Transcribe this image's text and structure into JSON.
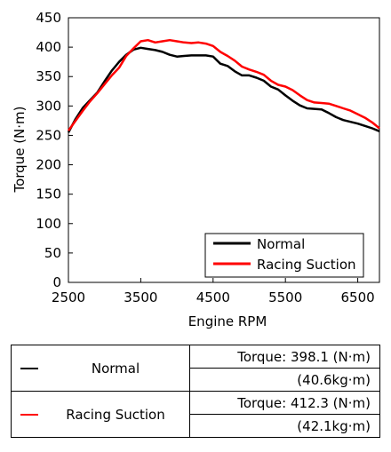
{
  "chart_data": {
    "type": "line",
    "xlabel": "Engine RPM",
    "ylabel": "Torque (N·m)",
    "xlim": [
      2500,
      6800
    ],
    "ylim": [
      0,
      450
    ],
    "xticks": [
      2500,
      3500,
      4500,
      5500,
      6500
    ],
    "yticks": [
      0,
      50,
      100,
      150,
      200,
      250,
      300,
      350,
      400,
      450
    ],
    "grid": false,
    "legend_position": "bottom-right",
    "series": [
      {
        "name": "Normal",
        "color": "#000000",
        "x": [
          2500,
          2600,
          2700,
          2800,
          2900,
          3000,
          3100,
          3200,
          3300,
          3400,
          3500,
          3600,
          3700,
          3800,
          3900,
          4000,
          4100,
          4200,
          4300,
          4400,
          4500,
          4600,
          4700,
          4800,
          4900,
          5000,
          5100,
          5200,
          5300,
          5400,
          5500,
          5600,
          5700,
          5800,
          5900,
          6000,
          6100,
          6200,
          6300,
          6400,
          6500,
          6600,
          6700,
          6800
        ],
        "y": [
          255,
          278,
          297,
          310,
          323,
          342,
          360,
          375,
          387,
          396,
          399,
          397,
          395,
          392,
          387,
          384,
          385,
          386,
          386,
          386,
          384,
          372,
          368,
          359,
          352,
          352,
          348,
          343,
          333,
          328,
          318,
          309,
          301,
          296,
          295,
          294,
          288,
          281,
          276,
          273,
          270,
          266,
          262,
          257
        ]
      },
      {
        "name": "Racing Suction",
        "color": "#ff0000",
        "x": [
          2500,
          2600,
          2700,
          2800,
          2900,
          3000,
          3100,
          3200,
          3300,
          3400,
          3500,
          3600,
          3700,
          3800,
          3900,
          4000,
          4100,
          4200,
          4300,
          4400,
          4500,
          4600,
          4700,
          4800,
          4900,
          5000,
          5100,
          5200,
          5300,
          5400,
          5500,
          5600,
          5700,
          5800,
          5900,
          6000,
          6100,
          6200,
          6300,
          6400,
          6500,
          6600,
          6700,
          6800
        ],
        "y": [
          258,
          275,
          292,
          308,
          322,
          337,
          352,
          365,
          385,
          398,
          410,
          412,
          408,
          410,
          412,
          410,
          408,
          407,
          408,
          406,
          402,
          392,
          385,
          377,
          367,
          362,
          358,
          353,
          343,
          336,
          333,
          327,
          318,
          310,
          306,
          305,
          304,
          300,
          296,
          292,
          286,
          280,
          272,
          262
        ]
      }
    ]
  },
  "table": {
    "rows": [
      {
        "name": "Normal",
        "color": "#000000",
        "torque_nm": "Torque: 398.1 (N·m)",
        "torque_kgm": "(40.6kg·m)"
      },
      {
        "name": "Racing Suction",
        "color": "#ff0000",
        "torque_nm": "Torque: 412.3 (N·m)",
        "torque_kgm": "(42.1kg·m)"
      }
    ]
  }
}
